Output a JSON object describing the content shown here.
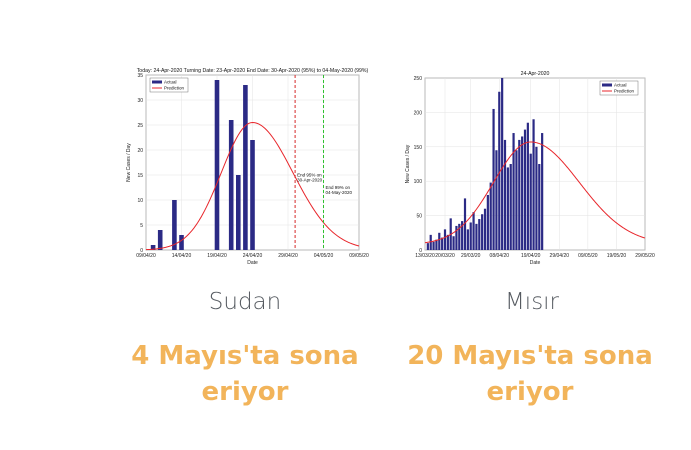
{
  "panels": [
    {
      "country": "Sudan",
      "headline_line1": "4 Mayıs'ta sona",
      "headline_line2": "eriyor",
      "chart_data": {
        "type": "bar",
        "title": "Today: 24-Apr-2020   Turning Date: 23-Apr-2020   End Date: 30-Apr-2020 (95%) to 04-May-2020 (99%)",
        "xlabel": "Date",
        "ylabel": "New Cases / Day",
        "ylim": [
          0,
          35
        ],
        "yticks": [
          0,
          5,
          10,
          15,
          20,
          25,
          30,
          35
        ],
        "xlim": [
          "09/04/20",
          "09/05/20"
        ],
        "x_tick_labels": [
          "09/04/20",
          "14/04/20",
          "19/04/20",
          "24/04/20",
          "29/04/20",
          "04/05/20",
          "09/05/20"
        ],
        "legend": [
          "Actual",
          "Prediction"
        ],
        "series": [
          {
            "name": "Actual",
            "color": "#2b2a85",
            "days": [
              1,
              2,
              4,
              5,
              10,
              12,
              13,
              14,
              15
            ],
            "values": [
              1,
              4,
              10,
              3,
              34,
              26,
              15,
              33,
              22
            ]
          },
          {
            "name": "Prediction",
            "color": "#e8262b",
            "peak_day": 15,
            "peak_value": 25.5,
            "sigma_left": 4.4,
            "sigma_right": 5.7
          }
        ],
        "vlines": [
          {
            "day": 21,
            "color": "#d42a2a",
            "label_line1": "End 95% on",
            "label_line2": "30-Apr-2020"
          },
          {
            "day": 25,
            "color": "#2fc02f",
            "label_line1": "End 99% on",
            "label_line2": "04-May-2020"
          }
        ]
      }
    },
    {
      "country": "Mısır",
      "headline_line1": "20 Mayıs'ta sona",
      "headline_line2": "eriyor",
      "chart_data": {
        "type": "bar",
        "title": "24-Apr-2020",
        "xlabel": "Date",
        "ylabel": "New Cases / Day",
        "ylim": [
          0,
          250
        ],
        "yticks": [
          0,
          50,
          100,
          150,
          200,
          250
        ],
        "xlim": [
          "13/03/20",
          "29/05/20"
        ],
        "x_tick_labels": [
          "13/03/20",
          "20/03/20",
          "29/03/20",
          "08/04/20",
          "19/04/20",
          "29/04/20",
          "09/05/20",
          "19/05/20",
          "29/05/20"
        ],
        "legend": [
          "Actual",
          "Prediction"
        ],
        "series": [
          {
            "name": "Actual",
            "color": "#2b2a85",
            "start_day": 1,
            "values": [
              10,
              22,
              12,
              15,
              25,
              18,
              30,
              22,
              46,
              20,
              35,
              38,
              42,
              75,
              30,
              40,
              55,
              38,
              45,
              52,
              60,
              80,
              98,
              205,
              145,
              230,
              250,
              160,
              120,
              125,
              170,
              145,
              160,
              165,
              175,
              185,
              140,
              190,
              150,
              125,
              170
            ]
          },
          {
            "name": "Prediction",
            "color": "#e8262b",
            "peak_day": 37,
            "peak_value": 157,
            "sigma_left": 13,
            "sigma_right": 17,
            "baseline": 8
          }
        ]
      }
    }
  ]
}
